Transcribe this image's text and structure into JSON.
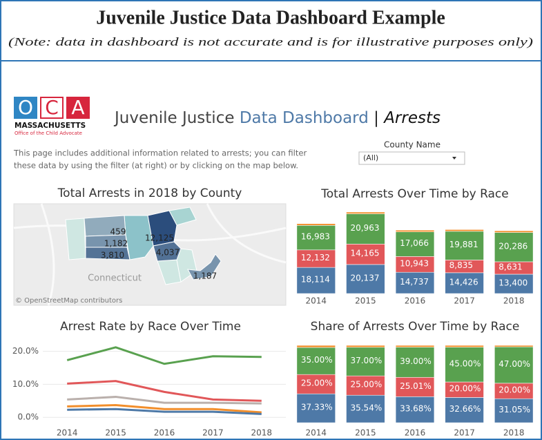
{
  "header": {
    "title": "Juvenile Justice Data Dashboard Example",
    "note": "(Note: data in dashboard is not accurate and is for illustrative purposes only)"
  },
  "logo": {
    "letters": [
      "O",
      "C",
      "A"
    ],
    "state": "MASSACHUSETTS",
    "office": "Office of the Child Advocate"
  },
  "dashboard": {
    "title_prefix": "Juvenile Justice",
    "title_highlight": "Data Dashboard",
    "separator": "|",
    "page": "Arrests",
    "description": [
      "This page includes additional information related to arrests; you can filter",
      "these data by using the filter (at right) or by clicking on the map below."
    ],
    "filter": {
      "label": "County Name",
      "selected": "(All)"
    }
  },
  "chart_data": [
    {
      "type": "map",
      "title": "Total Arrests in 2018 by County",
      "values": [
        459,
        1182,
        3810,
        12125,
        4037,
        1187
      ],
      "value_labels": [
        "459",
        "1,182",
        "3,810",
        "12,125",
        "4,037",
        "1,187"
      ],
      "place_label": "Connecticut",
      "attribution": "© OpenStreetMap contributors"
    },
    {
      "type": "bar",
      "stacked": true,
      "title": "Total Arrests Over Time by Race",
      "categories": [
        "2014",
        "2015",
        "2016",
        "2017",
        "2018"
      ],
      "series": [
        {
          "color": "#4e79a7",
          "values": [
            18114,
            20137,
            14737,
            14426,
            13400
          ],
          "value_labels": [
            "18,114",
            "20,137",
            "14,737",
            "14,426",
            "13,400"
          ]
        },
        {
          "color": "#e15759",
          "values": [
            12132,
            14165,
            10943,
            8835,
            8631
          ],
          "value_labels": [
            "12,132",
            "14,165",
            "10,943",
            "8,835",
            "8,631"
          ]
        },
        {
          "color": "#59a14f",
          "values": [
            16983,
            20963,
            17066,
            19881,
            20286
          ],
          "value_labels": [
            "16,983",
            "20,963",
            "17,066",
            "19,881",
            "20,286"
          ]
        },
        {
          "color": "#f28e2b",
          "values": [
            1200,
            1200,
            1200,
            1200,
            1200
          ]
        }
      ]
    },
    {
      "type": "line",
      "title": "Arrest Rate by Race Over Time",
      "categories": [
        "2014",
        "2015",
        "2016",
        "2017",
        "2018"
      ],
      "ylim": [
        -1,
        22
      ],
      "yticks": [
        {
          "value": 0,
          "label": "0.0%"
        },
        {
          "value": 10,
          "label": "10.0%"
        },
        {
          "value": 20,
          "label": "20.0%"
        }
      ],
      "grid": true,
      "series": [
        {
          "color": "#59a14f",
          "values": [
            17.3,
            21.2,
            16.2,
            18.5,
            18.3
          ]
        },
        {
          "color": "#e15759",
          "values": [
            10.2,
            11.0,
            7.7,
            5.4,
            5.0
          ]
        },
        {
          "color": "#bab0ac",
          "values": [
            5.4,
            6.2,
            4.4,
            4.4,
            4.2
          ]
        },
        {
          "color": "#f28e2b",
          "values": [
            3.3,
            3.7,
            2.5,
            2.5,
            1.5
          ]
        },
        {
          "color": "#4e79a7",
          "values": [
            2.3,
            2.5,
            1.7,
            1.7,
            1.0
          ]
        }
      ]
    },
    {
      "type": "bar",
      "stacked": true,
      "title": "Share of Arrests Over Time by Race",
      "categories": [
        "2014",
        "2015",
        "2016",
        "2017",
        "2018"
      ],
      "series": [
        {
          "color": "#4e79a7",
          "values": [
            37.33,
            35.54,
            33.68,
            32.66,
            31.05
          ],
          "value_labels": [
            "37.33%",
            "35.54%",
            "33.68%",
            "32.66%",
            "31.05%"
          ]
        },
        {
          "color": "#e15759",
          "values": [
            25.0,
            25.0,
            25.01,
            20.0,
            20.0
          ],
          "value_labels": [
            "25.00%",
            "25.00%",
            "25.01%",
            "20.00%",
            "20.00%"
          ]
        },
        {
          "color": "#59a14f",
          "values": [
            35.0,
            37.0,
            39.0,
            45.0,
            47.0
          ],
          "value_labels": [
            "35.00%",
            "37.00%",
            "39.00%",
            "45.00%",
            "47.00%"
          ]
        },
        {
          "color": "#f28e2b",
          "values": [
            2.67,
            2.46,
            2.31,
            2.34,
            1.95
          ]
        }
      ]
    }
  ]
}
